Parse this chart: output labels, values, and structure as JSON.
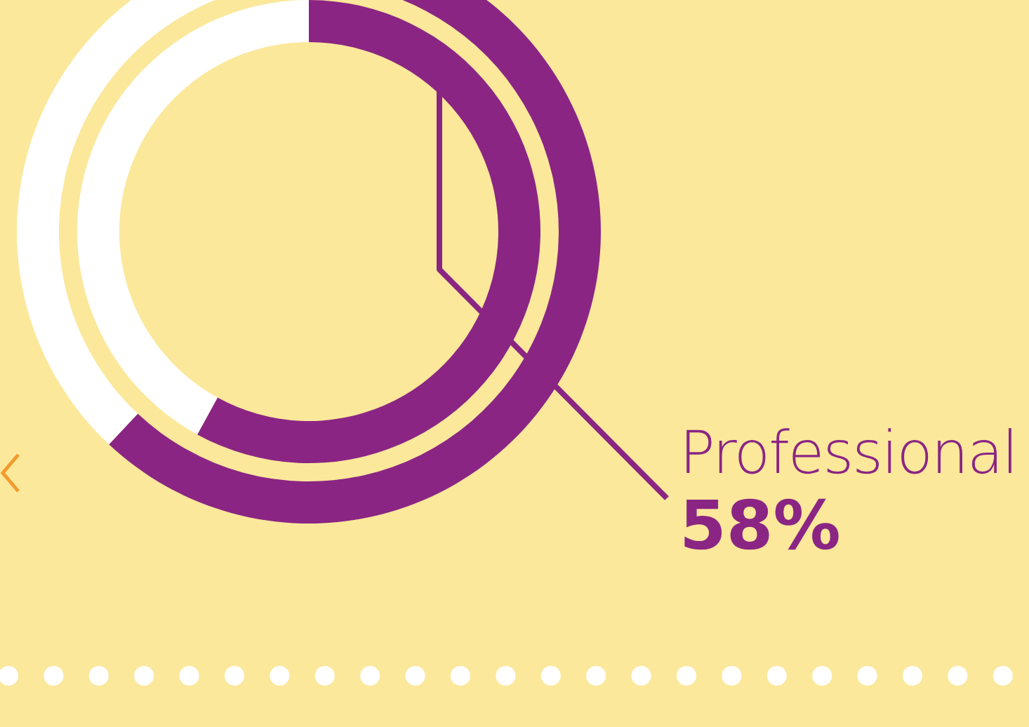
{
  "chart_data": {
    "type": "donut",
    "categories": [
      null,
      null
    ],
    "series": [
      {
        "values": [
          62,
          38
        ],
        "colors": [
          "#8b2584",
          "#ffffff"
        ]
      },
      {
        "name": "Professional",
        "values": [
          58,
          42
        ],
        "colors": [
          "#8b2584",
          "#ffffff"
        ],
        "value_labels": [
          "58%",
          null
        ]
      }
    ]
  }
}
